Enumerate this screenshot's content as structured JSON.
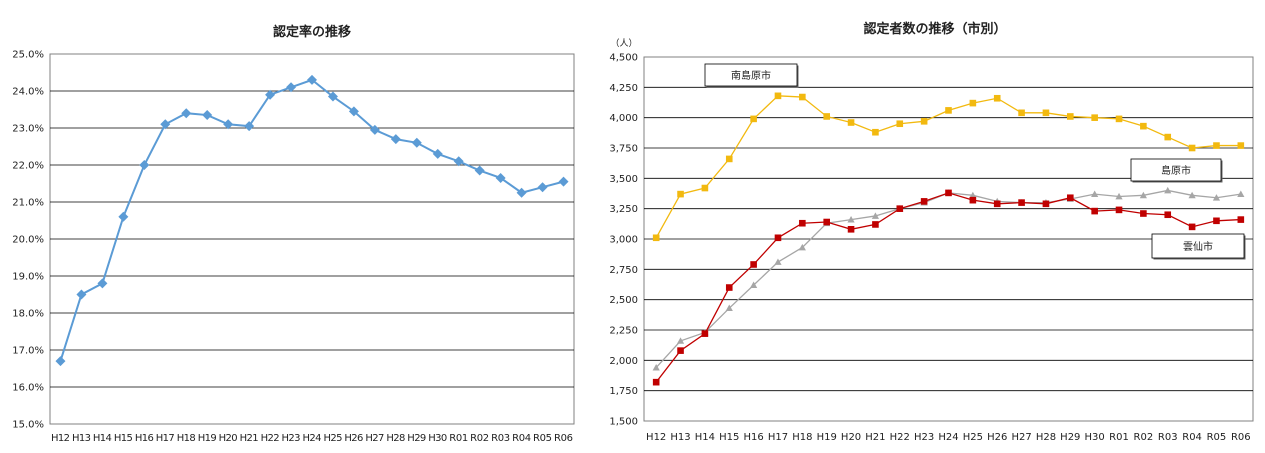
{
  "chart_data": [
    {
      "type": "line",
      "title": "認定率の推移",
      "categories": [
        "H12",
        "H13",
        "H14",
        "H15",
        "H16",
        "H17",
        "H18",
        "H19",
        "H20",
        "H21",
        "H22",
        "H23",
        "H24",
        "H25",
        "H26",
        "H27",
        "H28",
        "H29",
        "H30",
        "R01",
        "R02",
        "R03",
        "R04",
        "R05",
        "R06"
      ],
      "ylim": [
        15.0,
        25.0
      ],
      "yticks": [
        "15.0%",
        "16.0%",
        "17.0%",
        "18.0%",
        "19.0%",
        "20.0%",
        "21.0%",
        "22.0%",
        "23.0%",
        "24.0%",
        "25.0%"
      ],
      "series": [
        {
          "name": "認定率",
          "color": "#5B9BD5",
          "values": [
            16.7,
            18.5,
            18.8,
            20.6,
            22.0,
            23.1,
            23.4,
            23.35,
            23.1,
            23.05,
            23.9,
            24.1,
            24.3,
            23.85,
            23.45,
            22.95,
            22.7,
            22.6,
            22.3,
            22.1,
            21.85,
            21.65,
            21.25,
            21.4,
            21.55
          ]
        }
      ]
    },
    {
      "type": "line",
      "title": "認定者数の推移（市別）",
      "unit": "（人）",
      "categories": [
        "H12",
        "H13",
        "H14",
        "H15",
        "H16",
        "H17",
        "H18",
        "H19",
        "H20",
        "H21",
        "H22",
        "H23",
        "H24",
        "H25",
        "H26",
        "H27",
        "H28",
        "H29",
        "H30",
        "R01",
        "R02",
        "R03",
        "R04",
        "R05",
        "R06"
      ],
      "ylim": [
        1500,
        4500
      ],
      "yticks": [
        "1,500",
        "1,750",
        "2,000",
        "2,250",
        "2,500",
        "2,750",
        "3,000",
        "3,250",
        "3,500",
        "3,750",
        "4,000",
        "4,250",
        "4,500"
      ],
      "series": [
        {
          "name": "南島原市",
          "color": "#F2B90F",
          "marker": "square",
          "values": [
            3010,
            3370,
            3420,
            3660,
            3990,
            4180,
            4170,
            4010,
            3960,
            3880,
            3950,
            3970,
            4060,
            4120,
            4160,
            4040,
            4040,
            4010,
            4000,
            3990,
            3930,
            3840,
            3750,
            3770,
            3770
          ]
        },
        {
          "name": "島原市",
          "color": "#A6A6A6",
          "marker": "triangle",
          "values": [
            1940,
            2160,
            2230,
            2430,
            2620,
            2810,
            2930,
            3130,
            3160,
            3190,
            3250,
            3300,
            3380,
            3360,
            3310,
            3300,
            3300,
            3330,
            3370,
            3350,
            3360,
            3400,
            3360,
            3340,
            3370
          ]
        },
        {
          "name": "雲仙市",
          "color": "#C00000",
          "marker": "square",
          "values": [
            1820,
            2080,
            2220,
            2600,
            2790,
            3010,
            3130,
            3140,
            3080,
            3120,
            3250,
            3310,
            3380,
            3320,
            3290,
            3300,
            3290,
            3340,
            3230,
            3240,
            3210,
            3200,
            3100,
            3150,
            3160
          ]
        }
      ]
    }
  ]
}
